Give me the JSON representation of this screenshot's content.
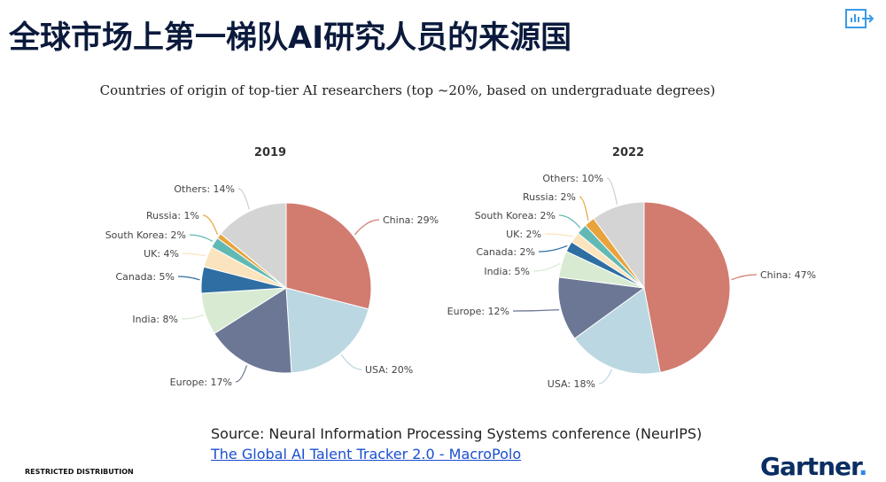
{
  "header": {
    "title": "全球市场上第一梯队AI研究人员的来源国",
    "export_icon": "chart-export-icon"
  },
  "chart_data": [
    {
      "type": "pie",
      "title": "2019",
      "subtitle": "Countries of origin of top-tier AI researchers (top ~20%, based on undergraduate degrees)",
      "categories": [
        "China",
        "USA",
        "Europe",
        "India",
        "Canada",
        "UK",
        "South Korea",
        "Russia",
        "Others"
      ],
      "values": [
        29,
        20,
        17,
        8,
        5,
        4,
        2,
        1,
        14
      ],
      "labels": [
        "China: 29%",
        "USA: 20%",
        "Europe: 17%",
        "India: 8%",
        "Canada: 5%",
        "UK: 4%",
        "South Korea: 2%",
        "Russia: 1%",
        "Others: 14%"
      ],
      "direction": "clockwise from top"
    },
    {
      "type": "pie",
      "title": "2022",
      "categories": [
        "China",
        "USA",
        "Europe",
        "India",
        "Canada",
        "UK",
        "South Korea",
        "Russia",
        "Others"
      ],
      "values": [
        47,
        18,
        12,
        5,
        2,
        2,
        2,
        2,
        10
      ],
      "labels": [
        "China: 47%",
        "USA: 18%",
        "Europe: 12%",
        "India: 5%",
        "Canada: 2%",
        "UK: 2%",
        "South Korea: 2%",
        "Russia: 2%",
        "Others: 10%"
      ],
      "direction": "clockwise from top"
    }
  ],
  "colors": {
    "China": "#d27b6f",
    "USA": "#bbd7e1",
    "Europe": "#6b7794",
    "India": "#d8ebd2",
    "Canada": "#2e6ea3",
    "UK": "#fbe4bd",
    "South Korea": "#62b9b3",
    "Russia": "#e9a33c",
    "Others": "#d4d4d4"
  },
  "footer": {
    "source": "Source: Neural Information Processing Systems conference (NeurIPS)",
    "link": "The Global AI Talent Tracker 2.0 - MacroPolo",
    "restricted": "RESTRICTED DISTRIBUTION",
    "logo": "Gartner"
  }
}
